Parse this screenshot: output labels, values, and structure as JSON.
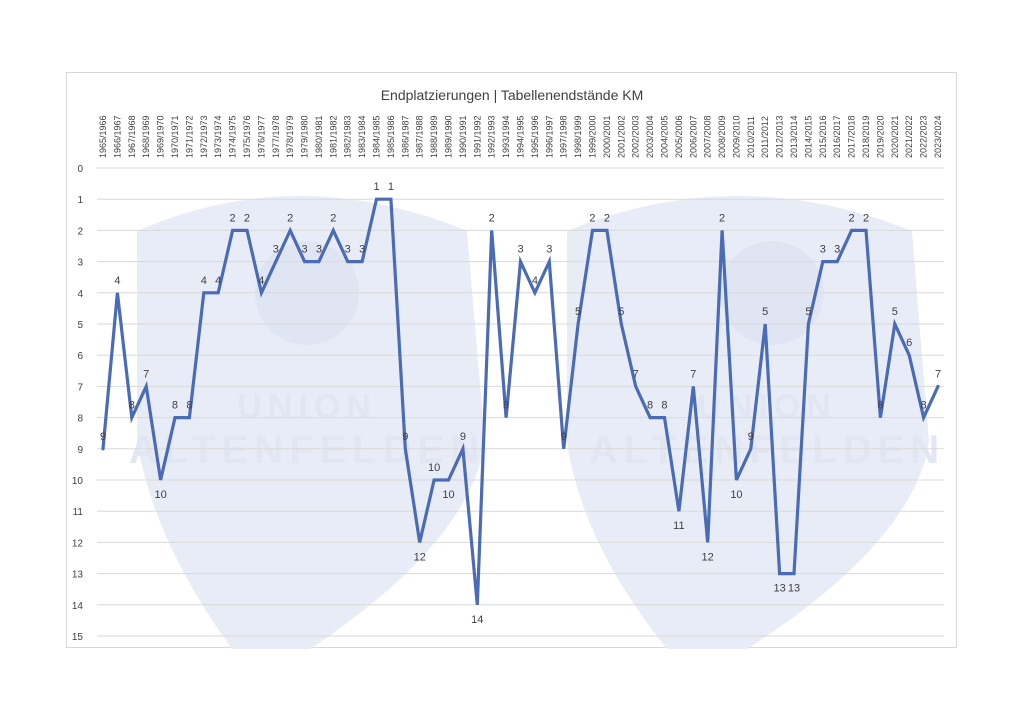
{
  "chart_data": {
    "type": "line",
    "title": "Endplatzierungen | Tabellenendstände KM",
    "xlabel": "",
    "ylabel": "",
    "ylim": [
      0,
      15
    ],
    "y_inverted": true,
    "y_ticks": [
      "0",
      "1",
      "2",
      "3",
      "4",
      "5",
      "6",
      "7",
      "8",
      "9",
      "10",
      "11",
      "12",
      "13",
      "14",
      "15"
    ],
    "grid": true,
    "legend": "none",
    "line_color": "#4a6bb5",
    "categories": [
      "1965/1966",
      "1966/1967",
      "1967/1968",
      "1968/1969",
      "1969/1970",
      "1970/1971",
      "1971/1972",
      "1972/1973",
      "1973/1974",
      "1974/1975",
      "1975/1976",
      "1976/1977",
      "1977/1978",
      "1978/1979",
      "1979/1980",
      "1980/1981",
      "1981/1982",
      "1982/1983",
      "1983/1984",
      "1984/1985",
      "1985/1986",
      "1986/1987",
      "1987/1988",
      "1988/1989",
      "1989/1990",
      "1990/1991",
      "1991/1992",
      "1992/1993",
      "1993/1994",
      "1994/1995",
      "1995/1996",
      "1996/1997",
      "1997/1998",
      "1998/1999",
      "1999/2000",
      "2000/2001",
      "2001/2002",
      "2002/2003",
      "2003/2004",
      "2004/2005",
      "2005/2006",
      "2006/2007",
      "2007/2008",
      "2008/2009",
      "2009/2010",
      "2010/2011",
      "2011/2012",
      "2012/2013",
      "2013/2014",
      "2014/2015",
      "2015/2016",
      "2016/2017",
      "2017/2018",
      "2018/2019",
      "2019/2020",
      "2020/2021",
      "2021/2022",
      "2022/2023",
      "2023/2024"
    ],
    "series": [
      {
        "values": [
          9,
          4,
          8,
          7,
          10,
          8,
          8,
          4,
          4,
          2,
          2,
          4,
          3,
          2,
          3,
          3,
          2,
          3,
          3,
          1,
          1,
          9,
          12,
          10,
          10,
          9,
          14,
          2,
          8,
          3,
          4,
          3,
          9,
          5,
          2,
          2,
          5,
          7,
          8,
          8,
          11,
          7,
          12,
          2,
          10,
          9,
          5,
          13,
          13,
          5,
          3,
          3,
          2,
          2,
          8,
          5,
          6,
          8,
          7
        ]
      }
    ]
  },
  "watermark": {
    "line1": "UNION",
    "line2": "ALTENFELDEN"
  }
}
